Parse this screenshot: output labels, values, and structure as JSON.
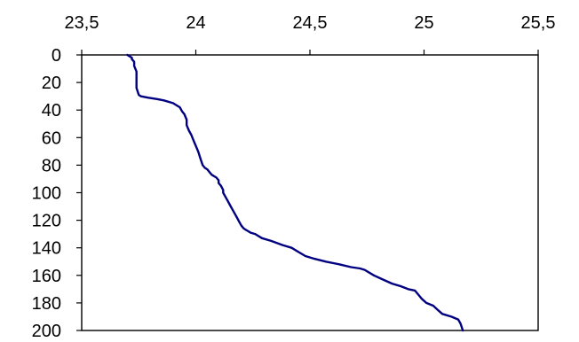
{
  "chart_data": {
    "type": "line",
    "title": "",
    "xlabel": "",
    "ylabel": "",
    "x_axis_position": "top",
    "y_axis_inverted": true,
    "xlim": [
      23.5,
      25.5
    ],
    "ylim": [
      0,
      200
    ],
    "x_tick_labels": [
      "23,5",
      "24",
      "24,5",
      "25",
      "25,5"
    ],
    "x_tick_values": [
      23.5,
      24,
      24.5,
      25,
      25.5
    ],
    "y_tick_labels": [
      "0",
      "20",
      "40",
      "60",
      "80",
      "100",
      "120",
      "140",
      "160",
      "180",
      "200"
    ],
    "y_tick_values": [
      0,
      20,
      40,
      60,
      80,
      100,
      120,
      140,
      160,
      180,
      200
    ],
    "grid": false,
    "line_color": "#000080",
    "series": [
      {
        "x": [
          23.7,
          23.71,
          23.72,
          23.72,
          23.73,
          23.73,
          23.73,
          23.74,
          23.74,
          23.74,
          23.75,
          23.76,
          23.79,
          23.83,
          23.86,
          23.9,
          23.93,
          23.94,
          23.95,
          23.96,
          23.96,
          23.97,
          23.98,
          23.99,
          24.0,
          24.01,
          24.02,
          24.03,
          24.04,
          24.05,
          24.06,
          24.07,
          24.09,
          24.1,
          24.1,
          24.11,
          24.12,
          24.12,
          24.13,
          24.14,
          24.15,
          24.16,
          24.17,
          24.18,
          24.19,
          24.2,
          24.21,
          24.22,
          24.23,
          24.24,
          24.26,
          24.29,
          24.33,
          24.38,
          24.42,
          24.45,
          24.48,
          24.52,
          24.57,
          24.63,
          24.68,
          24.72,
          24.74,
          24.78,
          24.82,
          24.86,
          24.9,
          24.93,
          24.96,
          24.97,
          24.98,
          24.99,
          25.01,
          25.04,
          25.06,
          25.08,
          25.12,
          25.15,
          25.16,
          25.17
        ],
        "y": [
          0,
          1,
          2,
          3,
          5,
          6,
          8,
          12,
          18,
          24,
          29,
          30,
          31,
          32,
          33,
          35,
          38,
          41,
          43,
          47,
          51,
          55,
          58,
          62,
          66,
          70,
          75,
          80,
          82,
          83,
          85,
          87,
          89,
          91,
          93,
          95,
          98,
          100,
          103,
          106,
          109,
          112,
          115,
          118,
          121,
          124,
          126,
          127,
          128,
          129,
          130,
          133,
          135,
          138,
          140,
          143,
          146,
          148,
          150,
          152,
          154,
          155,
          156,
          160,
          163,
          166,
          168,
          170,
          171,
          173,
          175,
          177,
          180,
          182,
          185,
          188,
          190,
          192,
          195,
          200
        ]
      }
    ]
  }
}
